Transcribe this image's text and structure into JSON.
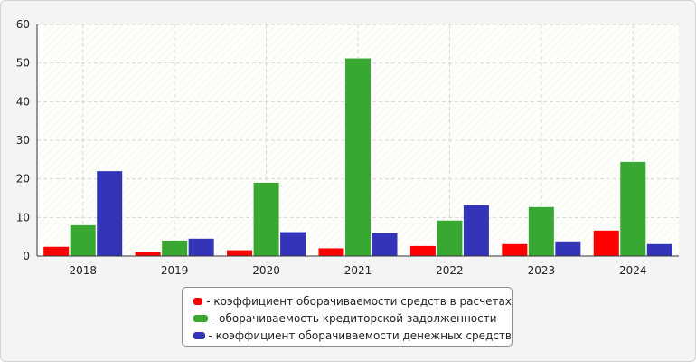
{
  "chart_data": {
    "type": "bar",
    "categories": [
      "2018",
      "2019",
      "2020",
      "2021",
      "2022",
      "2023",
      "2024"
    ],
    "series": [
      {
        "name": "- коэффициент оборачиваемости средств в расчетах",
        "color": "#ff0000",
        "values": [
          2.4,
          1.0,
          1.5,
          2.0,
          2.6,
          3.1,
          6.6
        ]
      },
      {
        "name": "- оборачиваемость кредиторской задолженности",
        "color": "#38a832",
        "values": [
          8.0,
          4.0,
          19.0,
          51.2,
          9.2,
          12.7,
          24.4
        ]
      },
      {
        "name": "- коэффициент оборачиваемости денежных средств",
        "color": "#3434b8",
        "values": [
          22.0,
          4.5,
          6.2,
          5.9,
          13.2,
          3.8,
          3.1
        ]
      }
    ],
    "yticks": [
      0,
      10,
      20,
      30,
      40,
      50,
      60
    ],
    "ylim": [
      0,
      60
    ],
    "grid": true,
    "legend_position": "bottom-center"
  }
}
